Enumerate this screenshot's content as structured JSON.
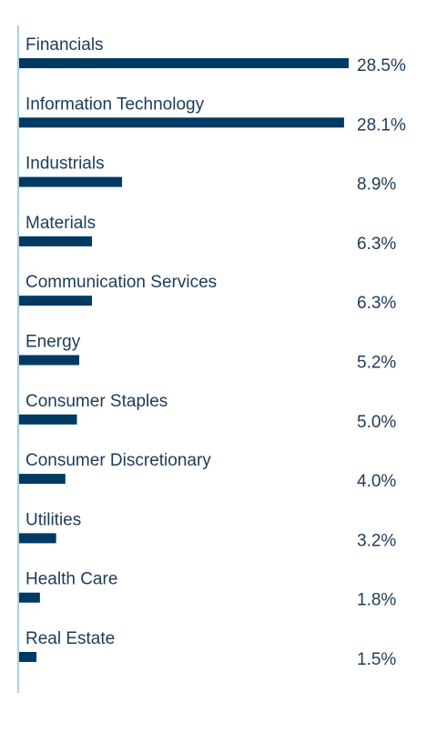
{
  "chart_data": {
    "type": "bar",
    "orientation": "horizontal",
    "categories": [
      "Financials",
      "Information Technology",
      "Industrials",
      "Materials",
      "Communication Services",
      "Energy",
      "Consumer Staples",
      "Consumer Discretionary",
      "Utilities",
      "Health Care",
      "Real Estate"
    ],
    "values": [
      28.5,
      28.1,
      8.9,
      6.3,
      6.3,
      5.2,
      5.0,
      4.0,
      3.2,
      1.8,
      1.5
    ],
    "value_labels": [
      "28.5%",
      "28.1%",
      "8.9%",
      "6.3%",
      "6.3%",
      "5.2%",
      "5.0%",
      "4.0%",
      "3.2%",
      "1.8%",
      "1.5%"
    ],
    "title": "",
    "xlabel": "",
    "ylabel": "",
    "xlim": [
      0,
      28.5
    ],
    "grid": false,
    "legend": "none",
    "colors": {
      "bar": "#003a63",
      "axis": "#a9d2e6",
      "text": "#1d3b5a"
    }
  }
}
